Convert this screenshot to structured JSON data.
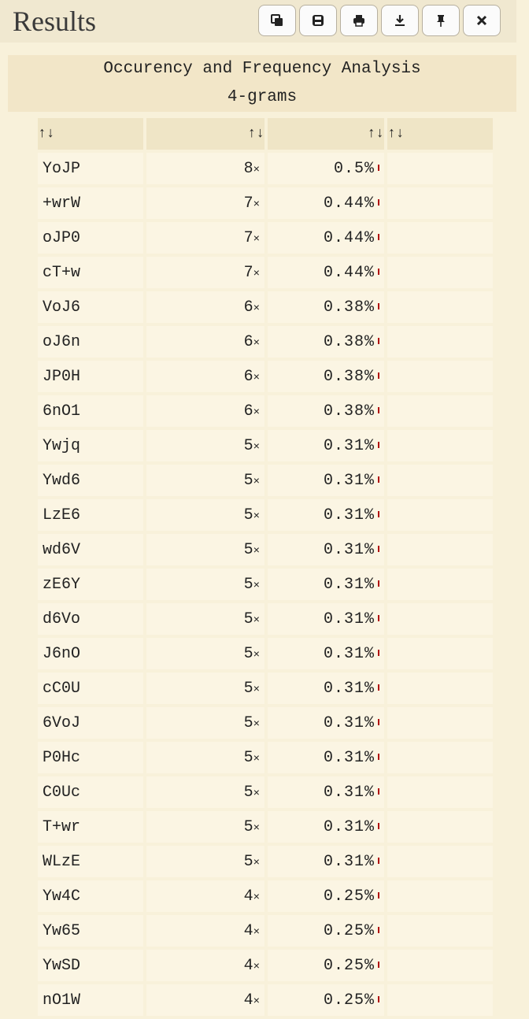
{
  "header": {
    "title": "Results",
    "toolbar": [
      {
        "name": "copy-button",
        "icon": "copy-icon"
      },
      {
        "name": "save-button",
        "icon": "save-icon"
      },
      {
        "name": "print-button",
        "icon": "print-icon"
      },
      {
        "name": "download-button",
        "icon": "download-icon"
      },
      {
        "name": "pin-button",
        "icon": "pin-icon"
      },
      {
        "name": "close-button",
        "icon": "close-icon"
      }
    ]
  },
  "panel": {
    "title": "Occurency and Frequency Analysis",
    "subtitle": "4-grams"
  },
  "table": {
    "sort_symbol": "↑↓",
    "times_symbol": "×",
    "bar_color": "#b01010",
    "rows": [
      {
        "gram": "YoJP",
        "count": "8",
        "percent": "0.5%"
      },
      {
        "gram": "+wrW",
        "count": "7",
        "percent": "0.44%"
      },
      {
        "gram": "oJP0",
        "count": "7",
        "percent": "0.44%"
      },
      {
        "gram": "cT+w",
        "count": "7",
        "percent": "0.44%"
      },
      {
        "gram": "VoJ6",
        "count": "6",
        "percent": "0.38%"
      },
      {
        "gram": "oJ6n",
        "count": "6",
        "percent": "0.38%"
      },
      {
        "gram": "JP0H",
        "count": "6",
        "percent": "0.38%"
      },
      {
        "gram": "6nO1",
        "count": "6",
        "percent": "0.38%"
      },
      {
        "gram": "Ywjq",
        "count": "5",
        "percent": "0.31%"
      },
      {
        "gram": "Ywd6",
        "count": "5",
        "percent": "0.31%"
      },
      {
        "gram": "LzE6",
        "count": "5",
        "percent": "0.31%"
      },
      {
        "gram": "wd6V",
        "count": "5",
        "percent": "0.31%"
      },
      {
        "gram": "zE6Y",
        "count": "5",
        "percent": "0.31%"
      },
      {
        "gram": "d6Vo",
        "count": "5",
        "percent": "0.31%"
      },
      {
        "gram": "J6nO",
        "count": "5",
        "percent": "0.31%"
      },
      {
        "gram": "cC0U",
        "count": "5",
        "percent": "0.31%"
      },
      {
        "gram": "6VoJ",
        "count": "5",
        "percent": "0.31%"
      },
      {
        "gram": "P0Hc",
        "count": "5",
        "percent": "0.31%"
      },
      {
        "gram": "C0Uc",
        "count": "5",
        "percent": "0.31%"
      },
      {
        "gram": "T+wr",
        "count": "5",
        "percent": "0.31%"
      },
      {
        "gram": "WLzE",
        "count": "5",
        "percent": "0.31%"
      },
      {
        "gram": "Yw4C",
        "count": "4",
        "percent": "0.25%"
      },
      {
        "gram": "Yw65",
        "count": "4",
        "percent": "0.25%"
      },
      {
        "gram": "YwSD",
        "count": "4",
        "percent": "0.25%"
      },
      {
        "gram": "nO1W",
        "count": "4",
        "percent": "0.25%"
      }
    ]
  }
}
